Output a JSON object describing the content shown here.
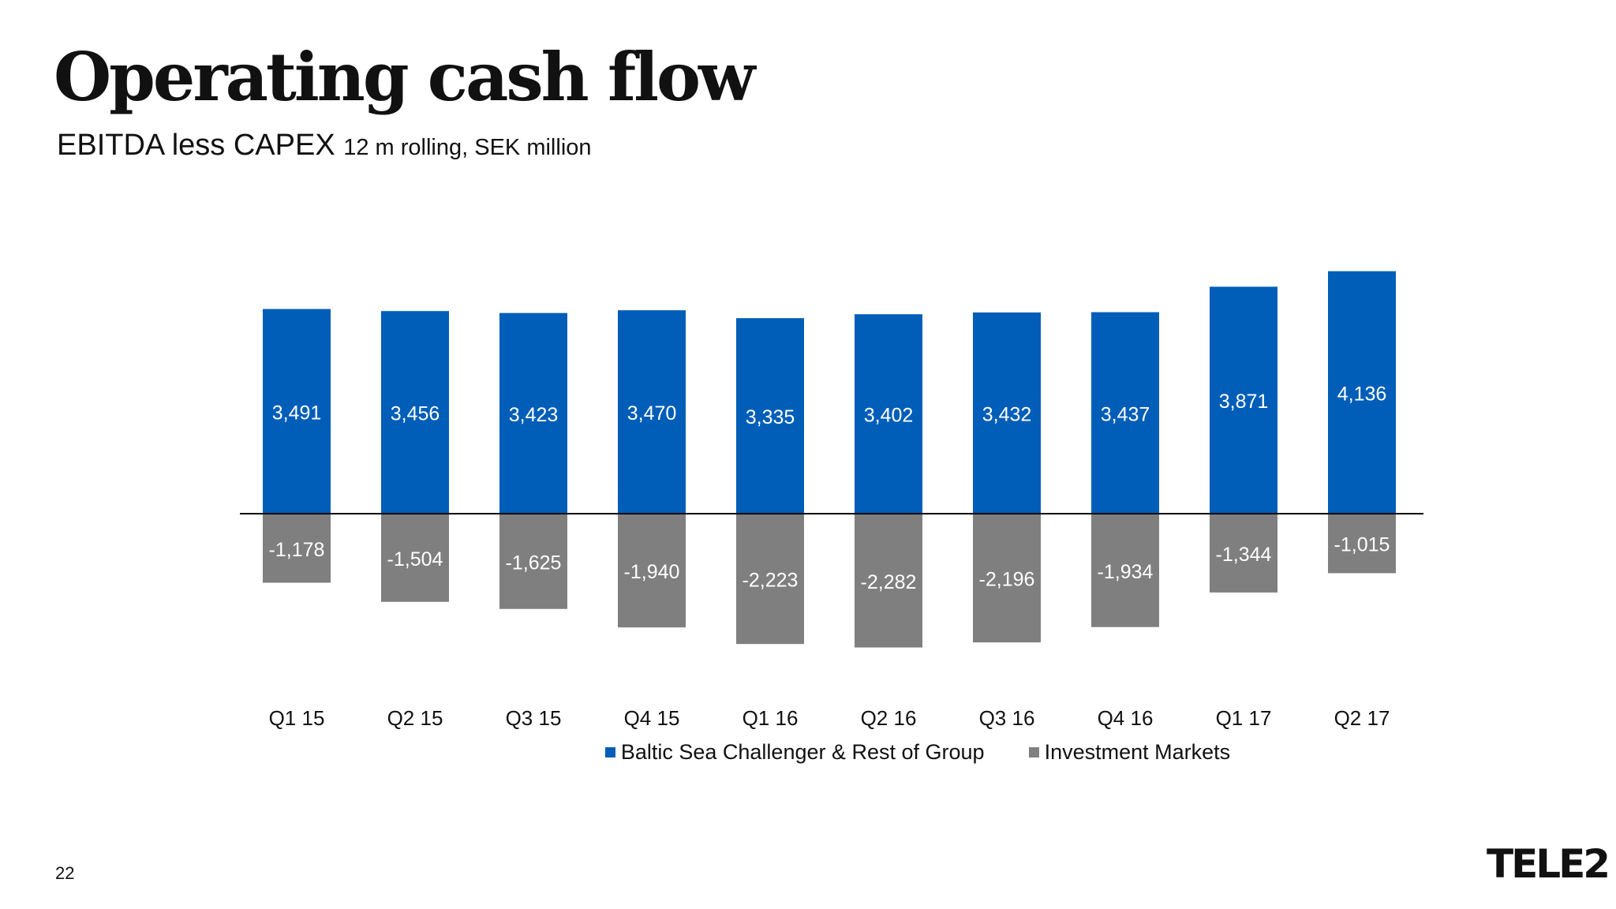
{
  "title": "Operating cash flow",
  "subtitle": {
    "main": "EBITDA less CAPEX",
    "detail": "12 m rolling, SEK million"
  },
  "page_number": "22",
  "logo_text": "TELE2",
  "colors": {
    "positive": "#005EB8",
    "negative": "#7F7F7F",
    "axis": "#000000"
  },
  "chart_data": {
    "type": "bar",
    "stacked": true,
    "categories": [
      "Q1 15",
      "Q2 15",
      "Q3 15",
      "Q4 15",
      "Q1 16",
      "Q2 16",
      "Q3 16",
      "Q4 16",
      "Q1 17",
      "Q2 17"
    ],
    "series": [
      {
        "name": "Baltic Sea Challenger & Rest of Group",
        "values": [
          3491,
          3456,
          3423,
          3470,
          3335,
          3402,
          3432,
          3437,
          3871,
          4136
        ],
        "labels": [
          "3,491",
          "3,456",
          "3,423",
          "3,470",
          "3,335",
          "3,402",
          "3,432",
          "3,437",
          "3,871",
          "4,136"
        ]
      },
      {
        "name": "Investment Markets",
        "values": [
          -1178,
          -1504,
          -1625,
          -1940,
          -2223,
          -2282,
          -2196,
          -1934,
          -1344,
          -1015
        ],
        "labels": [
          "-1,178",
          "-1,504",
          "-1,625",
          "-1,940",
          "-2,223",
          "-2,282",
          "-2,196",
          "-1,934",
          "-1,344",
          "-1,015"
        ]
      }
    ],
    "legend_position": "bottom",
    "grid": false
  }
}
